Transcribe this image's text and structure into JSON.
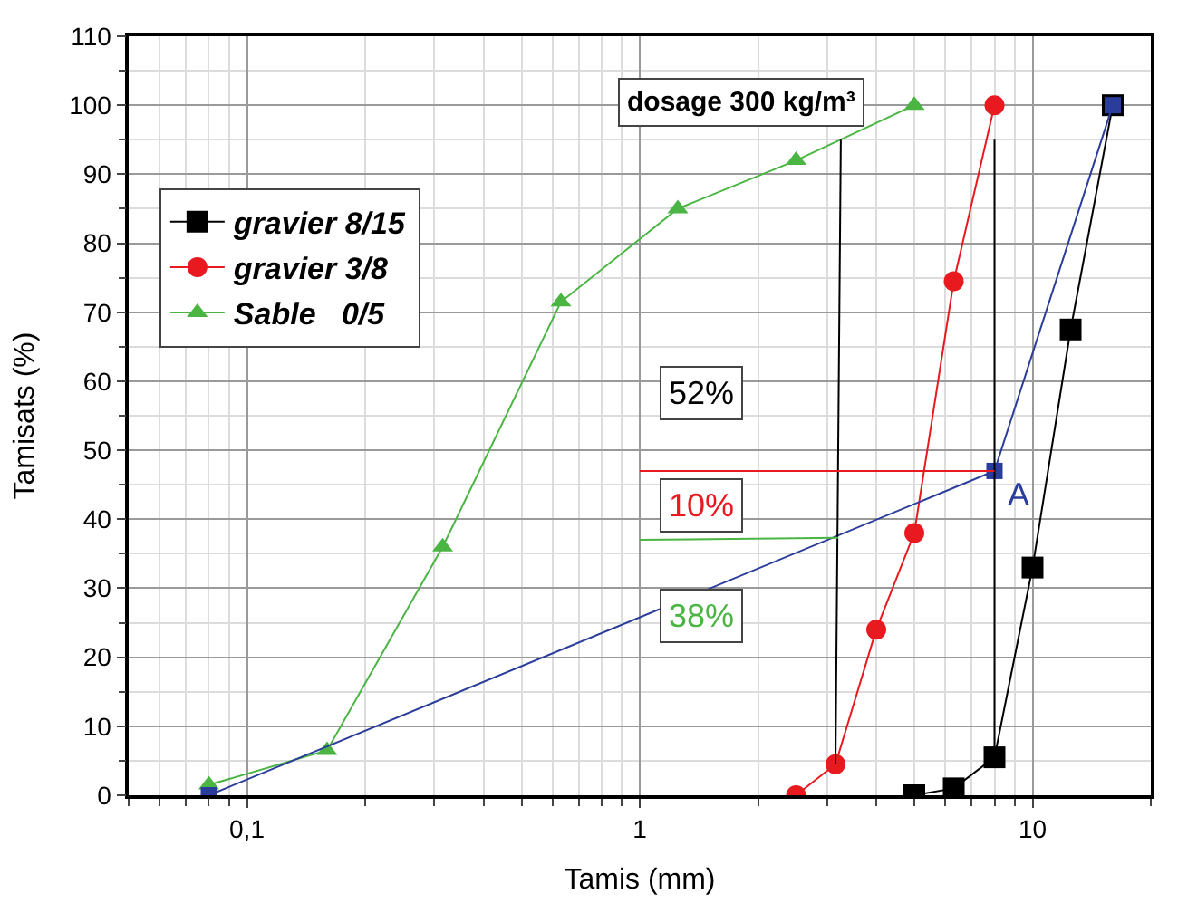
{
  "chart_data": {
    "type": "line",
    "xlabel": "Tamis (mm)",
    "ylabel": "Tamisats (%)",
    "log": "x",
    "xlim": [
      0.05,
      20
    ],
    "xticks": [
      {
        "value": 0.1,
        "label": "0,1"
      },
      1,
      10
    ],
    "ylim": [
      0,
      110
    ],
    "yticks": [
      0,
      10,
      20,
      30,
      40,
      50,
      60,
      70,
      80,
      90,
      100,
      110
    ],
    "grid": true,
    "legend": "top left",
    "annotations": [
      "dosage 300 kg/m³",
      "52%",
      "10%",
      "38%",
      {
        "text": "A",
        "x": 8,
        "y": 47
      }
    ],
    "series": [
      {
        "name": "gravier 8/15",
        "color": "#000000",
        "marker": "square",
        "x": [
          5,
          6.3,
          8,
          10,
          12.5,
          16
        ],
        "values": [
          0,
          1,
          5.5,
          33,
          67.5,
          100
        ]
      },
      {
        "name": "gravier 3/8",
        "color": "#e8191f",
        "marker": "circle",
        "x": [
          2.5,
          3.15,
          4,
          5,
          6.3,
          8
        ],
        "values": [
          0,
          4.5,
          24,
          38,
          74.5,
          100
        ]
      },
      {
        "name": "Sable   0/5",
        "color": "#4bb543",
        "marker": "triangle",
        "x": [
          0.08,
          0.16,
          0.315,
          0.63,
          1.25,
          2.5,
          5
        ],
        "values": [
          1.5,
          6.5,
          36,
          71.5,
          85,
          92,
          100
        ]
      },
      {
        "color": "#2b3d9a",
        "marker": "square",
        "x": [
          0.08,
          8,
          16
        ],
        "values": [
          0,
          47,
          100
        ]
      },
      {
        "color": "#000000",
        "marker": "none",
        "x": [
          3.15,
          3.25
        ],
        "values": [
          4.5,
          95
        ]
      },
      {
        "color": "#000000",
        "marker": "none",
        "x": [
          8,
          8
        ],
        "values": [
          5.5,
          95
        ]
      },
      {
        "color": "#e8191f",
        "marker": "none",
        "x": [
          1,
          8
        ],
        "values": [
          47,
          47
        ]
      },
      {
        "color": "#4bb543",
        "marker": "none",
        "x": [
          1,
          3.2
        ],
        "values": [
          37,
          37.3
        ]
      }
    ]
  }
}
